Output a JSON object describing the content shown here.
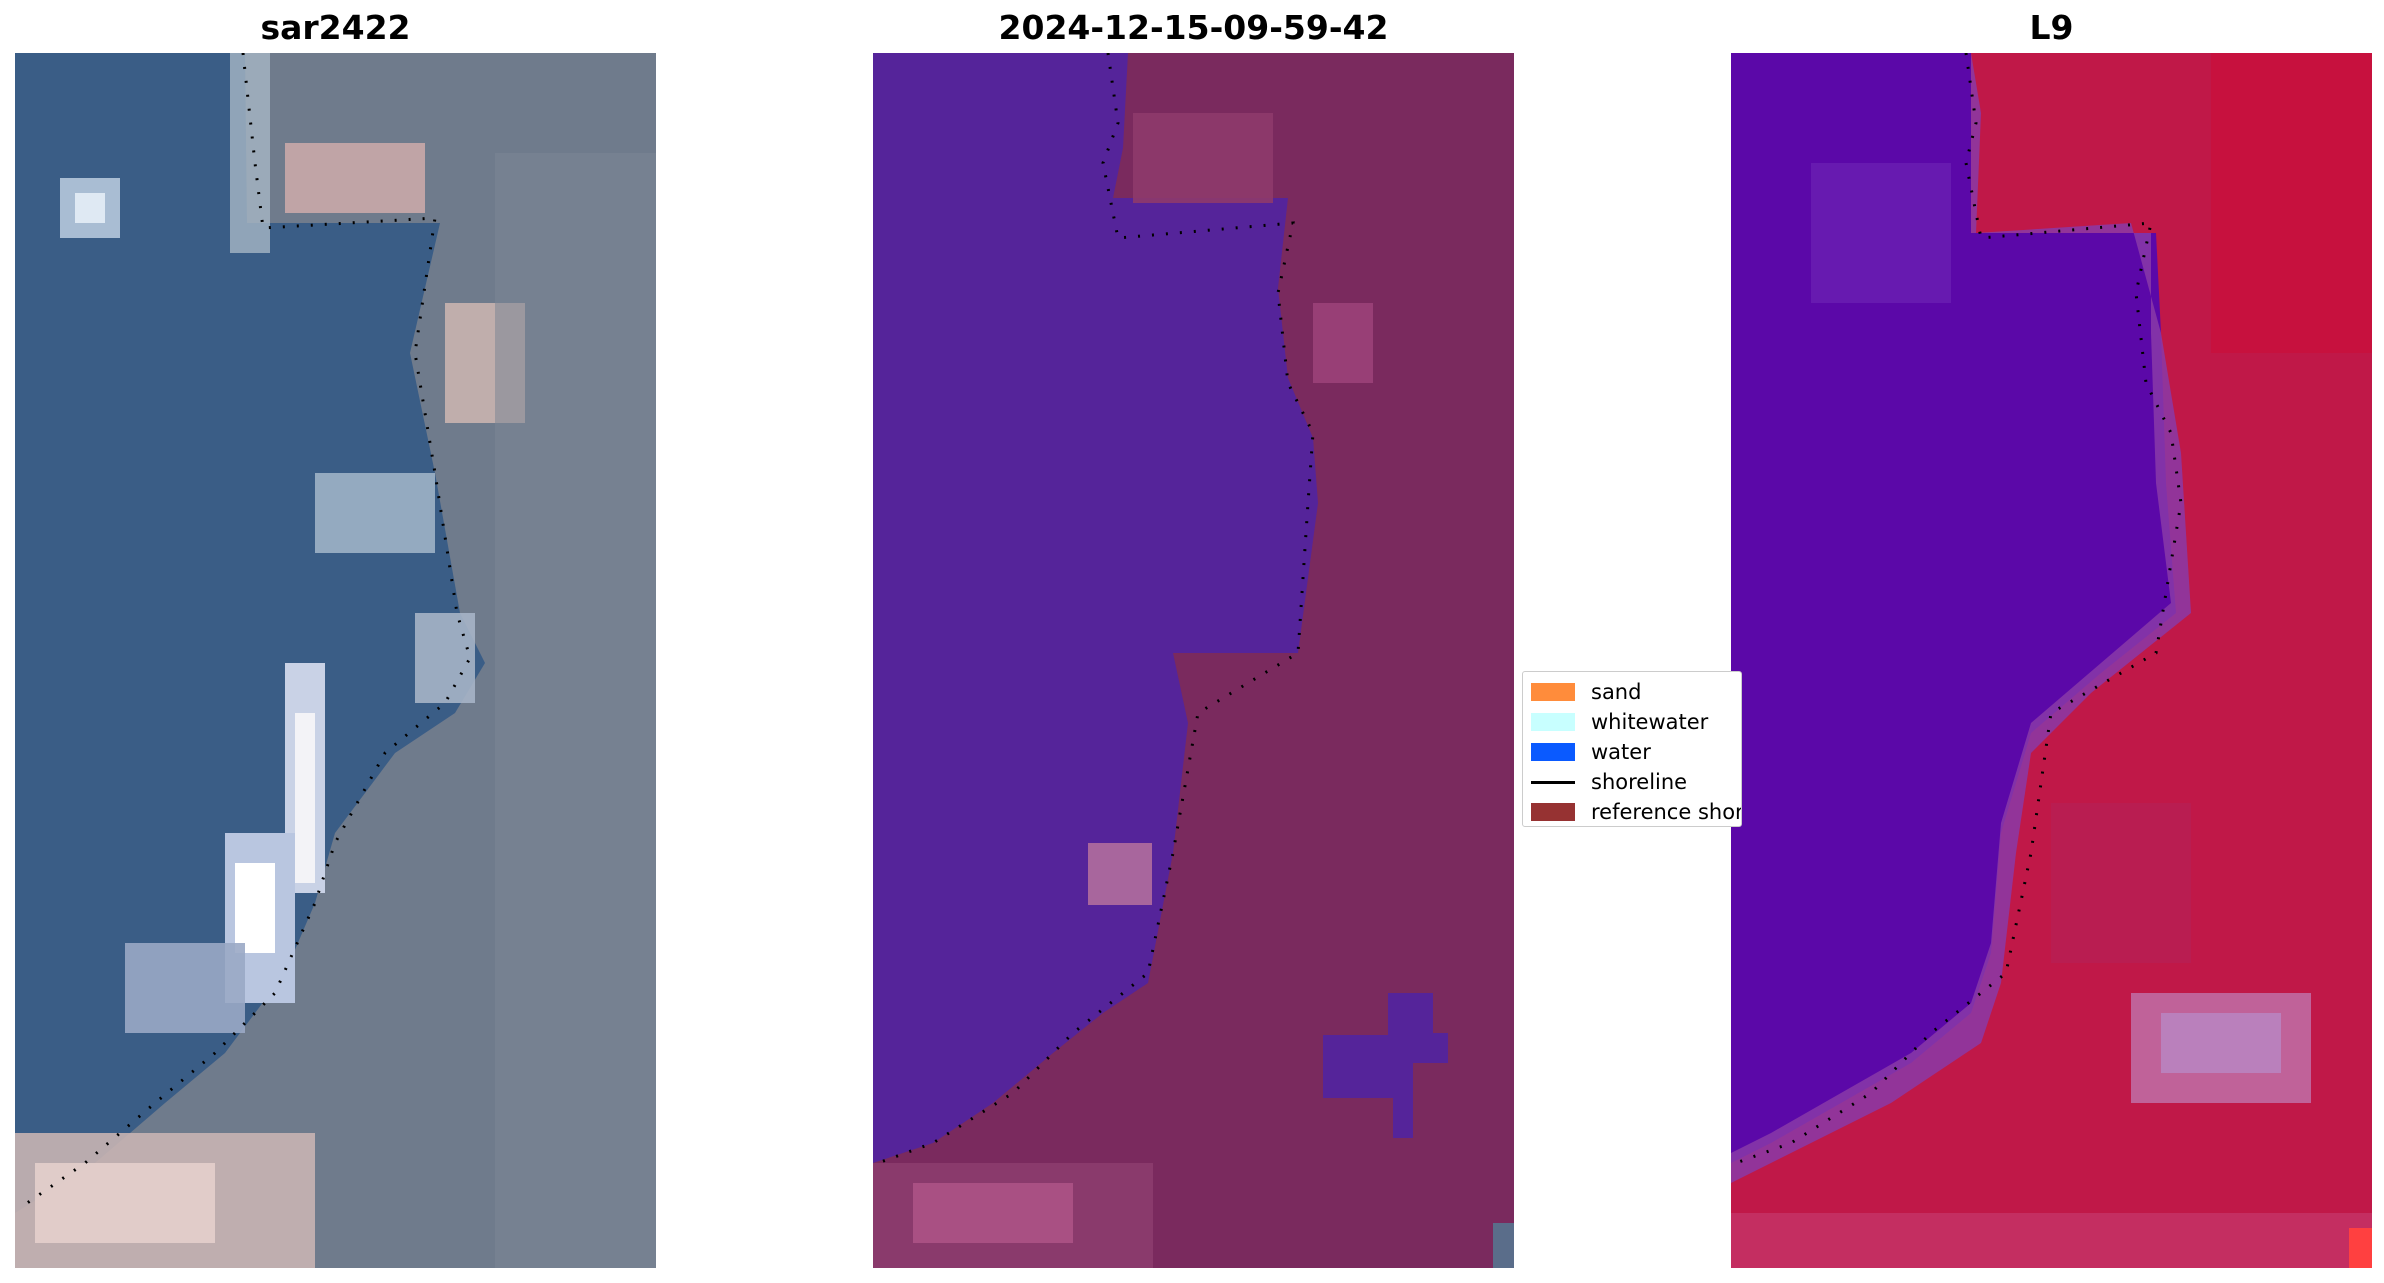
{
  "panels": [
    {
      "title": "sar2422"
    },
    {
      "title": "2024-12-15-09-59-42"
    },
    {
      "title": "L9"
    }
  ],
  "legend": {
    "items": [
      {
        "label": "sand",
        "color": "#ff8c3b",
        "kind": "patch"
      },
      {
        "label": "whitewater",
        "color": "#c8ffff",
        "kind": "patch"
      },
      {
        "label": "water",
        "color": "#0a5aff",
        "kind": "patch"
      },
      {
        "label": "shoreline",
        "color": "#000000",
        "kind": "line"
      },
      {
        "label": "reference shoreline",
        "color": "#963232",
        "kind": "patch"
      }
    ]
  },
  "colors": {
    "rgb_water": "#3b5f86",
    "rgb_land": "#7b8591",
    "class_water": "#55249a",
    "class_land": "#7a2a5e",
    "ndwi_water": "#5b08a8",
    "ndwi_land": "#c01848"
  }
}
